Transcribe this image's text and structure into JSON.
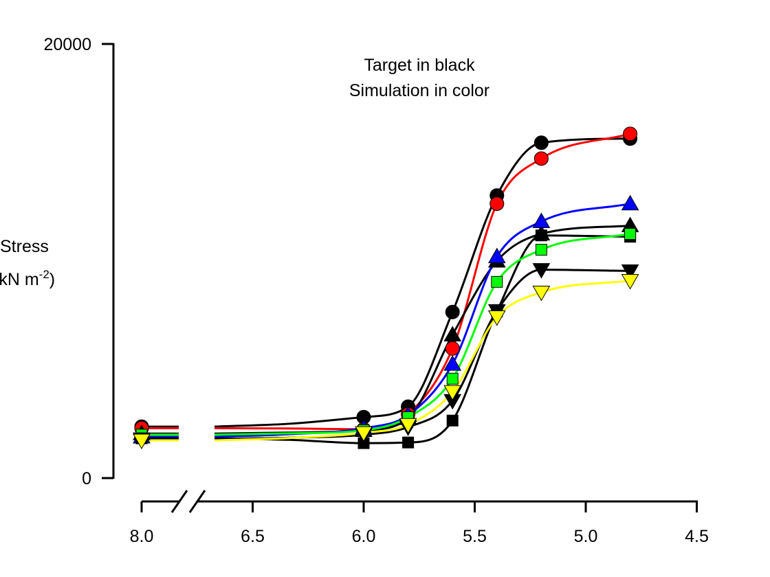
{
  "chart_data": {
    "type": "line",
    "annotation": [
      "Target in black",
      "Simulation in color"
    ],
    "ylabel": "Stress",
    "ylabel_unit": "(kN m",
    "ylabel_exp": "-2",
    "ylabel_close": ")",
    "ylim": [
      0,
      20000
    ],
    "yticks": [
      "0",
      "20000"
    ],
    "xticks": [
      "8.0",
      "6.5",
      "6.0",
      "5.5",
      "5.0",
      "4.5"
    ],
    "x_axis_break": true,
    "x_reversed": true,
    "grid": false,
    "x": [
      8.0,
      6.0,
      5.8,
      5.6,
      5.4,
      5.2,
      4.8
    ],
    "series": [
      {
        "color": "#000000",
        "marker": "circle",
        "values": [
          2370,
          2810,
          3290,
          7650,
          13020,
          15450,
          15640
        ]
      },
      {
        "color": "#ff0000",
        "marker": "circle",
        "values": [
          2300,
          2250,
          2940,
          5970,
          12640,
          14720,
          15860
        ]
      },
      {
        "color": "#000000",
        "marker": "triangle-up",
        "values": [
          2050,
          2200,
          2750,
          6600,
          10000,
          11250,
          11630
        ]
      },
      {
        "color": "#0000ff",
        "marker": "triangle-up",
        "values": [
          1900,
          2300,
          2900,
          5250,
          10200,
          11820,
          12640
        ]
      },
      {
        "color": "#000000",
        "marker": "square",
        "values": [
          1830,
          1610,
          1640,
          2650,
          7680,
          11180,
          11120
        ]
      },
      {
        "color": "#00ff00",
        "marker": "square",
        "values": [
          2000,
          2200,
          2800,
          4580,
          9040,
          10520,
          11250
        ]
      },
      {
        "color": "#000000",
        "marker": "triangle-down",
        "values": [
          1800,
          2000,
          2350,
          3570,
          7710,
          9600,
          9540
        ]
      },
      {
        "color": "#ffff00",
        "marker": "triangle-down",
        "values": [
          1740,
          2085,
          2460,
          3980,
          7420,
          8560,
          9100
        ]
      }
    ]
  }
}
